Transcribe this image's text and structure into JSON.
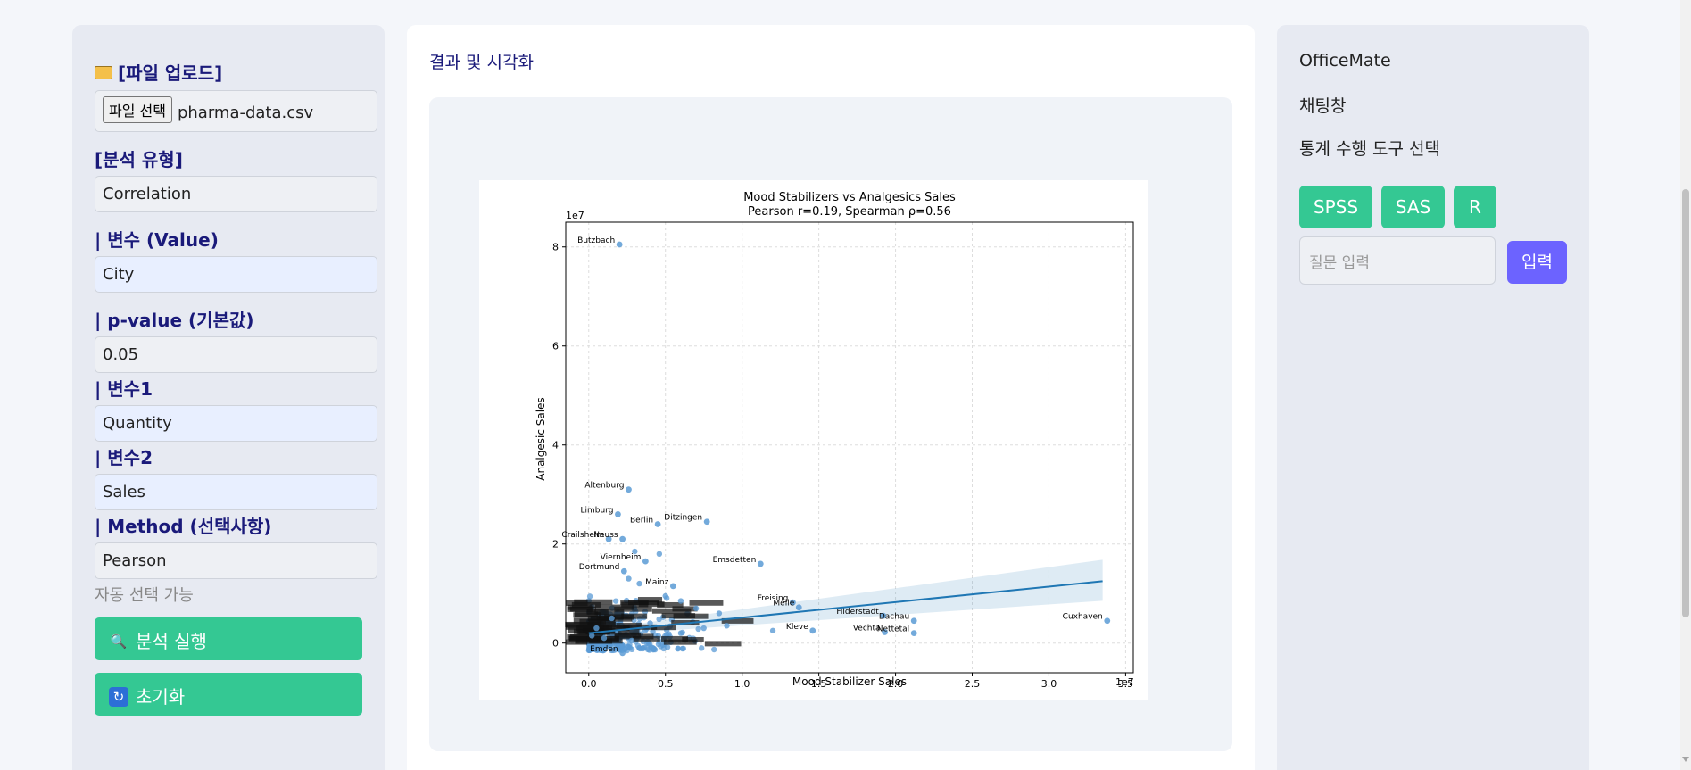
{
  "left_panel": {
    "upload_label": "[파일 업로드]",
    "file_button": "파일 선택",
    "file_name": "pharma-data.csv",
    "analysis_type_label": "[분석 유형]",
    "analysis_type_value": "Correlation",
    "value_var_label": "| 변수 (Value)",
    "value_var_value": "City",
    "pvalue_label": "| p-value (기본값)",
    "pvalue_value": "0.05",
    "var1_label": "| 변수1",
    "var1_value": "Quantity",
    "var2_label": "| 변수2",
    "var2_value": "Sales",
    "method_label": "| Method (선택사항)",
    "method_value": "Pearson",
    "method_hint": "자동 선택 가능",
    "run_button": "분석 실행",
    "reset_button": "초기화",
    "run_icon": "magnifier-icon",
    "reset_icon": "refresh-icon"
  },
  "middle_panel": {
    "title": "결과 및 시각화"
  },
  "right_panel": {
    "app_name": "OfficeMate",
    "chat_label": "채팅창",
    "tool_select_label": "통계 수행 도구 선택",
    "tools": [
      "SPSS",
      "SAS",
      "R"
    ],
    "question_placeholder": "질문 입력",
    "submit_button": "입력"
  },
  "colors": {
    "green": "#34c893",
    "purple": "#6c63ff",
    "navy_label": "#1a1a7a",
    "point": "#5b9bd5",
    "line": "#1f77b4"
  },
  "chart_data": {
    "type": "scatter",
    "title": "Mood Stabilizers vs Analgesics Sales",
    "subtitle": "Pearson r=0.19, Spearman ρ=0.56",
    "xlabel": "Mood Stabilizer Sales",
    "ylabel": "Analgesic Sales",
    "x_scale_label": "1e7",
    "y_scale_label": "1e7",
    "xlim": [
      -0.15,
      3.55
    ],
    "ylim": [
      -0.6,
      8.5
    ],
    "x_ticks": [
      0.0,
      0.5,
      1.0,
      1.5,
      2.0,
      2.5,
      3.0,
      3.5
    ],
    "x_tick_labels": [
      "0.0",
      "0.5",
      "1.0",
      "1.5",
      "2.0",
      "2.5",
      "3.0",
      "3.5"
    ],
    "y_ticks": [
      0,
      2,
      4,
      6,
      8
    ],
    "y_tick_labels": [
      "0",
      "2",
      "4",
      "6",
      "8"
    ],
    "grid": true,
    "regression_line": {
      "x": [
        0.0,
        3.35
      ],
      "y": [
        0.2,
        1.25
      ]
    },
    "labeled_points": [
      {
        "label": "Butzbach",
        "x": 0.2,
        "y": 8.05
      },
      {
        "label": "Altenburg",
        "x": 0.26,
        "y": 3.1
      },
      {
        "label": "Limburg",
        "x": 0.19,
        "y": 2.6
      },
      {
        "label": "Berlin",
        "x": 0.45,
        "y": 2.4
      },
      {
        "label": "Ditzingen",
        "x": 0.77,
        "y": 2.45
      },
      {
        "label": "Crailsheim",
        "x": 0.13,
        "y": 2.1
      },
      {
        "label": "Neuss",
        "x": 0.22,
        "y": 2.1
      },
      {
        "label": "Emsdetten",
        "x": 1.12,
        "y": 1.6
      },
      {
        "label": "Viernheim",
        "x": 0.37,
        "y": 1.65
      },
      {
        "label": "Dortmund",
        "x": 0.23,
        "y": 1.45
      },
      {
        "label": "Freising",
        "x": 1.33,
        "y": 0.82
      },
      {
        "label": "Melle",
        "x": 1.37,
        "y": 0.72
      },
      {
        "label": "Filderstadt",
        "x": 1.92,
        "y": 0.55
      },
      {
        "label": "Dachau",
        "x": 2.12,
        "y": 0.45
      },
      {
        "label": "Cuxhaven",
        "x": 3.38,
        "y": 0.45
      },
      {
        "label": "Vechta",
        "x": 1.93,
        "y": 0.22
      },
      {
        "label": "Nettetal",
        "x": 2.12,
        "y": 0.2
      },
      {
        "label": "Kleve",
        "x": 1.46,
        "y": 0.25
      },
      {
        "label": "Emden",
        "x": 0.22,
        "y": -0.2
      },
      {
        "label": "Mainz",
        "x": 0.55,
        "y": 1.15
      }
    ],
    "unlabeled_points": [
      {
        "x": 0.3,
        "y": 1.85
      },
      {
        "x": 0.46,
        "y": 1.8
      },
      {
        "x": 0.26,
        "y": 1.3
      },
      {
        "x": 0.33,
        "y": 1.2
      },
      {
        "x": 0.5,
        "y": 0.95
      },
      {
        "x": 0.6,
        "y": 0.85
      },
      {
        "x": 0.7,
        "y": 0.7
      },
      {
        "x": 0.85,
        "y": 0.6
      },
      {
        "x": 1.2,
        "y": 0.25
      },
      {
        "x": 0.9,
        "y": 0.35
      },
      {
        "x": 0.15,
        "y": 0.5
      },
      {
        "x": 0.4,
        "y": 0.4
      },
      {
        "x": 0.05,
        "y": 0.3
      },
      {
        "x": 0.1,
        "y": 0.1
      },
      {
        "x": 0.6,
        "y": 0.2
      },
      {
        "x": 0.75,
        "y": 0.3
      },
      {
        "x": 0.28,
        "y": 0.05
      },
      {
        "x": 0.02,
        "y": 0.15
      }
    ]
  }
}
